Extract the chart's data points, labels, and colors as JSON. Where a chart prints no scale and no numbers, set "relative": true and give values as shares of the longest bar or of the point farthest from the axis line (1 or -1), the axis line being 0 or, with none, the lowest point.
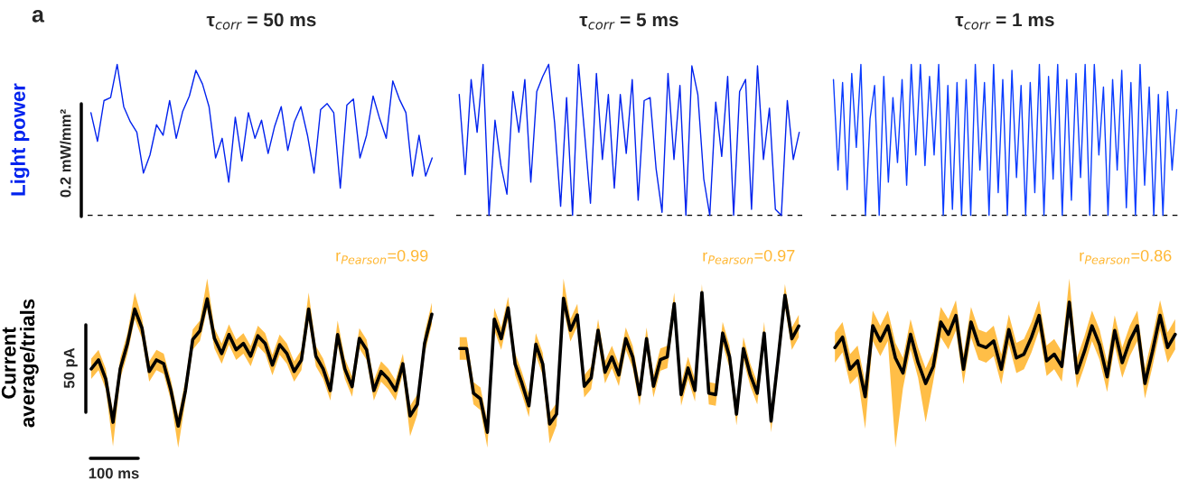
{
  "chart_data": [
    {
      "type": "line",
      "relative": true,
      "title": "τ$_{corr}$ = 50 ms",
      "ylabel": "Light power",
      "annotations": [
        "a",
        "0.2 mW/mm²"
      ],
      "categories": [
        null,
        null,
        null,
        null,
        null,
        null,
        null,
        null,
        null,
        null,
        null,
        null,
        null,
        null,
        null,
        null,
        null,
        null,
        null,
        null,
        null,
        null,
        null,
        null,
        null,
        null,
        null,
        null,
        null,
        null,
        null,
        null,
        null,
        null,
        null,
        null,
        null,
        null,
        null,
        null,
        null,
        null,
        null,
        null,
        null,
        null,
        null,
        null,
        null,
        null,
        null,
        null,
        null
      ],
      "ref_lines": [
        {
          "axis": "y",
          "value": 0,
          "line_style": "dashed",
          "color": "#000000"
        }
      ],
      "series": [
        {
          "color": "#0022ee",
          "values": [
            0.68,
            0.49,
            0.76,
            0.78,
            1.0,
            0.72,
            0.62,
            0.55,
            0.28,
            0.4,
            0.6,
            0.53,
            0.76,
            0.51,
            0.69,
            0.79,
            0.96,
            0.87,
            0.72,
            0.38,
            0.51,
            0.22,
            0.65,
            0.36,
            0.68,
            0.51,
            0.63,
            0.41,
            0.59,
            0.72,
            0.43,
            0.62,
            0.72,
            0.53,
            0.28,
            0.7,
            0.74,
            0.68,
            0.18,
            0.73,
            0.77,
            0.38,
            0.53,
            0.79,
            0.64,
            0.51,
            0.89,
            0.77,
            0.68,
            0.26,
            0.53,
            0.26,
            0.38
          ]
        }
      ]
    },
    {
      "type": "line",
      "relative": true,
      "title": "τ$_{corr}$ = 5 ms",
      "categories": [
        null,
        null,
        null,
        null,
        null,
        null,
        null,
        null,
        null,
        null,
        null,
        null,
        null,
        null,
        null,
        null,
        null,
        null,
        null,
        null,
        null,
        null,
        null,
        null,
        null,
        null,
        null,
        null,
        null,
        null,
        null,
        null,
        null,
        null,
        null,
        null,
        null,
        null,
        null,
        null,
        null,
        null,
        null,
        null,
        null,
        null,
        null,
        null,
        null,
        null,
        null,
        null,
        null,
        null,
        null,
        null,
        null,
        null
      ],
      "ref_lines": [
        {
          "axis": "y",
          "value": 0,
          "line_style": "dashed",
          "color": "#000000"
        }
      ],
      "series": [
        {
          "color": "#0022ee",
          "values": [
            0.8,
            0.27,
            0.9,
            0.55,
            1.0,
            0.0,
            0.63,
            0.33,
            0.14,
            0.82,
            0.55,
            0.9,
            0.22,
            0.82,
            0.92,
            1.0,
            0.61,
            0.06,
            0.78,
            0.0,
            1.0,
            0.55,
            0.08,
            0.94,
            0.37,
            0.8,
            0.18,
            0.8,
            0.41,
            0.9,
            0.1,
            0.76,
            0.78,
            0.31,
            0.02,
            0.94,
            0.37,
            0.86,
            0.0,
            0.99,
            0.8,
            0.24,
            0.0,
            0.75,
            0.39,
            0.92,
            0.0,
            0.82,
            0.9,
            0.04,
            0.99,
            0.37,
            0.71,
            0.04,
            0.0,
            0.76,
            0.37,
            0.55
          ]
        }
      ]
    },
    {
      "type": "line",
      "relative": true,
      "title": "τ$_{corr}$ = 1 ms",
      "categories": [
        null,
        null,
        null,
        null,
        null,
        null,
        null,
        null,
        null,
        null,
        null,
        null,
        null,
        null,
        null,
        null,
        null,
        null,
        null,
        null,
        null,
        null,
        null,
        null,
        null,
        null,
        null,
        null,
        null,
        null,
        null,
        null,
        null,
        null,
        null,
        null,
        null,
        null,
        null,
        null,
        null,
        null,
        null,
        null,
        null,
        null,
        null,
        null,
        null,
        null,
        null,
        null,
        null,
        null,
        null,
        null,
        null,
        null,
        null,
        null,
        null,
        null,
        null,
        null,
        null,
        null,
        null,
        null,
        null,
        null,
        null,
        null,
        null,
        null,
        null,
        null
      ],
      "ref_lines": [
        {
          "axis": "y",
          "value": 0,
          "line_style": "dashed",
          "color": "#000000"
        }
      ],
      "series": [
        {
          "color": "#0a3cff",
          "values": [
            0.9,
            0.3,
            0.88,
            0.17,
            0.94,
            0.45,
            1.0,
            0.0,
            0.64,
            0.86,
            0.0,
            0.92,
            0.22,
            0.78,
            0.35,
            0.9,
            0.2,
            1.0,
            0.4,
            1.0,
            0.33,
            0.92,
            0.4,
            1.0,
            0.0,
            0.86,
            0.04,
            0.88,
            0.0,
            0.9,
            0.0,
            1.0,
            0.3,
            0.88,
            0.0,
            1.0,
            0.15,
            0.9,
            0.0,
            0.96,
            0.25,
            0.86,
            0.0,
            0.88,
            0.15,
            1.0,
            0.0,
            0.92,
            0.24,
            1.0,
            0.0,
            0.9,
            0.1,
            0.94,
            0.25,
            1.0,
            0.0,
            1.0,
            0.4,
            0.85,
            0.0,
            0.9,
            0.3,
            0.96,
            0.05,
            0.88,
            0.0,
            1.0,
            0.2,
            0.85,
            0.0,
            0.8,
            0.0,
            0.82,
            0.3,
            0.7
          ]
        }
      ]
    },
    {
      "type": "line",
      "relative": true,
      "ylabel": "Current\naverage/trials",
      "annotations": [
        "50 pA",
        "100 ms",
        "r$_{Pearson}$=0.99"
      ],
      "categories": [
        null,
        null,
        null,
        null,
        null,
        null,
        null,
        null,
        null,
        null,
        null,
        null,
        null,
        null,
        null,
        null,
        null,
        null,
        null,
        null,
        null,
        null,
        null,
        null,
        null,
        null,
        null,
        null,
        null,
        null,
        null,
        null,
        null,
        null,
        null,
        null,
        null,
        null,
        null,
        null,
        null,
        null,
        null,
        null,
        null,
        null,
        null,
        null
      ],
      "series": [
        {
          "color": "#000000",
          "values": [
            0.45,
            0.52,
            0.37,
            0.03,
            0.45,
            0.65,
            0.92,
            0.77,
            0.43,
            0.52,
            0.49,
            0.28,
            0.0,
            0.28,
            0.68,
            0.75,
            1.0,
            0.69,
            0.57,
            0.72,
            0.6,
            0.65,
            0.55,
            0.71,
            0.65,
            0.48,
            0.64,
            0.57,
            0.43,
            0.52,
            0.92,
            0.55,
            0.45,
            0.28,
            0.72,
            0.45,
            0.31,
            0.69,
            0.6,
            0.28,
            0.43,
            0.37,
            0.28,
            0.49,
            0.08,
            0.17,
            0.65,
            0.88
          ],
          "lower": [
            0.37,
            0.44,
            0.29,
            -0.16,
            0.37,
            0.57,
            0.84,
            0.69,
            0.35,
            0.44,
            0.41,
            0.2,
            -0.17,
            0.2,
            0.6,
            0.67,
            0.92,
            0.61,
            0.49,
            0.64,
            0.52,
            0.57,
            0.47,
            0.63,
            0.57,
            0.4,
            0.56,
            0.49,
            0.35,
            0.44,
            0.83,
            0.47,
            0.37,
            0.2,
            0.64,
            0.37,
            0.23,
            0.61,
            0.52,
            0.2,
            0.35,
            0.29,
            0.2,
            0.41,
            -0.08,
            0.09,
            0.57,
            0.8
          ],
          "upper": [
            0.53,
            0.6,
            0.45,
            0.11,
            0.53,
            0.73,
            1.05,
            0.85,
            0.51,
            0.6,
            0.57,
            0.36,
            0.08,
            0.36,
            0.76,
            0.83,
            1.16,
            0.77,
            0.65,
            0.8,
            0.68,
            0.73,
            0.63,
            0.79,
            0.73,
            0.56,
            0.72,
            0.65,
            0.51,
            0.6,
            1.05,
            0.63,
            0.53,
            0.36,
            0.83,
            0.53,
            0.39,
            0.77,
            0.68,
            0.36,
            0.51,
            0.45,
            0.36,
            0.57,
            0.16,
            0.25,
            0.73,
            0.97
          ]
        }
      ]
    },
    {
      "type": "line",
      "relative": true,
      "annotations": [
        "r$_{Pearson}$=0.97"
      ],
      "categories": [
        null,
        null,
        null,
        null,
        null,
        null,
        null,
        null,
        null,
        null,
        null,
        null,
        null,
        null,
        null,
        null,
        null,
        null,
        null,
        null,
        null,
        null,
        null,
        null,
        null,
        null,
        null,
        null,
        null,
        null,
        null,
        null,
        null,
        null,
        null,
        null,
        null,
        null,
        null,
        null,
        null,
        null,
        null,
        null,
        null,
        null,
        null,
        null,
        null,
        null
      ],
      "series": [
        {
          "color": "#000000",
          "values": [
            0.6,
            0.6,
            0.28,
            0.24,
            0.0,
            0.81,
            0.67,
            0.89,
            0.49,
            0.35,
            0.19,
            0.63,
            0.49,
            0.06,
            0.13,
            0.96,
            0.73,
            0.84,
            0.33,
            0.39,
            0.73,
            0.43,
            0.54,
            0.41,
            0.67,
            0.54,
            0.27,
            0.67,
            0.33,
            0.52,
            0.54,
            0.92,
            0.27,
            0.46,
            0.3,
            1.0,
            0.28,
            0.27,
            0.71,
            0.54,
            0.13,
            0.6,
            0.41,
            0.28,
            0.71,
            0.08,
            0.52,
            0.98,
            0.67,
            0.76
          ],
          "lower": [
            0.52,
            0.52,
            0.2,
            0.16,
            -0.11,
            0.73,
            0.59,
            0.81,
            0.41,
            0.27,
            0.11,
            0.55,
            0.41,
            -0.08,
            0.05,
            0.88,
            0.65,
            0.76,
            0.25,
            0.31,
            0.65,
            0.35,
            0.46,
            0.33,
            0.59,
            0.46,
            0.19,
            0.59,
            0.25,
            0.44,
            0.46,
            0.84,
            0.19,
            0.38,
            0.22,
            0.92,
            0.2,
            0.19,
            0.63,
            0.46,
            0.05,
            0.52,
            0.33,
            0.2,
            0.63,
            0.0,
            0.44,
            0.9,
            0.59,
            0.68
          ],
          "upper": [
            0.68,
            0.68,
            0.36,
            0.32,
            0.08,
            0.89,
            0.75,
            0.97,
            0.57,
            0.43,
            0.27,
            0.71,
            0.57,
            0.14,
            0.21,
            1.1,
            0.81,
            0.92,
            0.41,
            0.47,
            0.81,
            0.51,
            0.62,
            0.49,
            0.75,
            0.62,
            0.35,
            0.75,
            0.41,
            0.6,
            0.62,
            1.0,
            0.35,
            0.54,
            0.38,
            1.06,
            0.36,
            0.35,
            0.79,
            0.62,
            0.21,
            0.68,
            0.49,
            0.36,
            0.79,
            0.16,
            0.6,
            1.06,
            0.75,
            0.84
          ]
        }
      ]
    },
    {
      "type": "line",
      "relative": true,
      "annotations": [
        "r$_{Pearson}$=0.86"
      ],
      "categories": [
        null,
        null,
        null,
        null,
        null,
        null,
        null,
        null,
        null,
        null,
        null,
        null,
        null,
        null,
        null,
        null,
        null,
        null,
        null,
        null,
        null,
        null,
        null,
        null,
        null,
        null,
        null,
        null,
        null,
        null,
        null,
        null,
        null,
        null,
        null,
        null,
        null,
        null,
        null,
        null,
        null,
        null,
        null,
        null,
        null,
        null
      ],
      "series": [
        {
          "color": "#000000",
          "values": [
            0.52,
            0.63,
            0.29,
            0.38,
            0.0,
            0.75,
            0.59,
            0.75,
            0.41,
            0.25,
            0.66,
            0.36,
            0.14,
            0.32,
            0.79,
            0.66,
            0.86,
            0.29,
            0.79,
            0.55,
            0.52,
            0.59,
            0.29,
            0.71,
            0.41,
            0.45,
            0.63,
            0.86,
            0.38,
            0.45,
            0.32,
            1.0,
            0.25,
            0.48,
            0.75,
            0.55,
            0.21,
            0.7,
            0.36,
            0.59,
            0.75,
            0.14,
            0.48,
            0.86,
            0.52,
            0.66
          ],
          "lower": [
            0.36,
            0.47,
            0.13,
            0.22,
            -0.34,
            0.59,
            0.43,
            0.59,
            -0.54,
            0.09,
            0.5,
            0.2,
            -0.27,
            0.16,
            0.63,
            0.5,
            0.7,
            0.13,
            0.63,
            0.39,
            0.36,
            0.43,
            0.13,
            0.55,
            0.25,
            0.29,
            0.47,
            0.7,
            0.22,
            0.29,
            0.16,
            0.84,
            0.09,
            0.32,
            0.59,
            0.39,
            0.05,
            0.54,
            0.2,
            0.43,
            0.59,
            -0.02,
            0.32,
            0.7,
            0.36,
            0.5
          ],
          "upper": [
            0.68,
            0.79,
            0.45,
            0.54,
            0.16,
            0.91,
            0.75,
            0.91,
            0.57,
            0.41,
            0.82,
            0.52,
            0.3,
            0.48,
            0.95,
            0.82,
            1.02,
            0.45,
            0.95,
            0.71,
            0.68,
            0.75,
            0.45,
            0.87,
            0.57,
            0.61,
            0.79,
            1.02,
            0.54,
            0.61,
            0.48,
            1.25,
            0.41,
            0.64,
            0.91,
            0.71,
            0.37,
            0.86,
            0.52,
            0.75,
            0.91,
            0.3,
            0.64,
            1.02,
            0.68,
            0.82
          ]
        }
      ]
    }
  ]
}
